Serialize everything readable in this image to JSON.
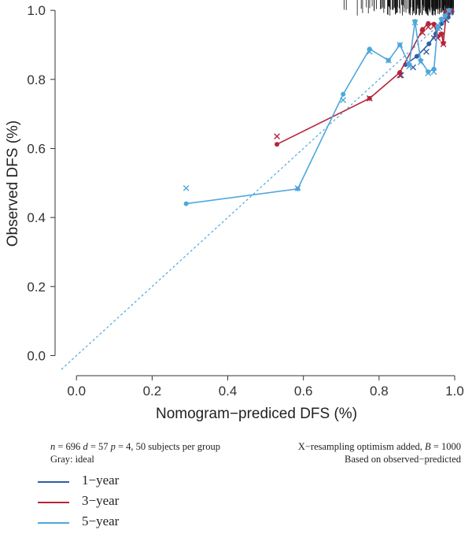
{
  "chart_data": {
    "type": "line",
    "xlabel": "Nomogram−prediced DFS (%)",
    "ylabel": "Observed DFS (%)",
    "xlim": [
      -0.04,
      1.0
    ],
    "ylim": [
      -0.04,
      1.03
    ],
    "xticks": [
      "0.0",
      "0.2",
      "0.4",
      "0.6",
      "0.8",
      "1.0"
    ],
    "yticks": [
      "0.0",
      "0.2",
      "0.4",
      "0.6",
      "0.8",
      "1.0"
    ],
    "grid": false,
    "ideal_line": true,
    "series": [
      {
        "name": "1−year",
        "color": "#2e5fa3",
        "observed": [
          [
            0.87,
            0.843
          ],
          [
            0.9,
            0.867
          ],
          [
            0.932,
            0.903
          ],
          [
            0.95,
            0.932
          ],
          [
            0.966,
            0.962
          ],
          [
            0.983,
            0.98
          ],
          [
            0.993,
            0.997
          ]
        ],
        "bias_corrected": [
          [
            0.858,
            0.812
          ],
          [
            0.89,
            0.835
          ],
          [
            0.925,
            0.88
          ],
          [
            0.945,
            0.92
          ],
          [
            0.96,
            0.952
          ],
          [
            0.978,
            0.972
          ],
          [
            0.99,
            0.995
          ]
        ]
      },
      {
        "name": "3−year",
        "color": "#b5253a",
        "observed": [
          [
            0.53,
            0.612
          ],
          [
            0.775,
            0.745
          ],
          [
            0.855,
            0.82
          ],
          [
            0.915,
            0.945
          ],
          [
            0.93,
            0.962
          ],
          [
            0.945,
            0.96
          ],
          [
            0.955,
            0.925
          ],
          [
            0.965,
            0.932
          ],
          [
            0.97,
            0.905
          ],
          [
            0.978,
            0.995
          ],
          [
            0.99,
            1.0
          ]
        ],
        "bias_corrected": [
          [
            0.53,
            0.635
          ],
          [
            0.775,
            0.745
          ],
          [
            0.855,
            0.812
          ],
          [
            0.915,
            0.935
          ],
          [
            0.93,
            0.952
          ],
          [
            0.945,
            0.955
          ],
          [
            0.955,
            0.92
          ],
          [
            0.965,
            0.928
          ],
          [
            0.97,
            0.902
          ],
          [
            0.978,
            0.99
          ],
          [
            0.99,
            0.998
          ]
        ]
      },
      {
        "name": "5−year",
        "color": "#4ea7dc",
        "observed": [
          [
            0.29,
            0.44
          ],
          [
            0.585,
            0.483
          ],
          [
            0.705,
            0.757
          ],
          [
            0.775,
            0.888
          ],
          [
            0.825,
            0.855
          ],
          [
            0.855,
            0.9
          ],
          [
            0.88,
            0.843
          ],
          [
            0.895,
            0.968
          ],
          [
            0.91,
            0.855
          ],
          [
            0.93,
            0.822
          ],
          [
            0.945,
            0.83
          ],
          [
            0.955,
            0.952
          ],
          [
            0.965,
            0.975
          ],
          [
            0.975,
            0.985
          ],
          [
            0.985,
            1.0
          ]
        ],
        "bias_corrected": [
          [
            0.29,
            0.485
          ],
          [
            0.585,
            0.485
          ],
          [
            0.705,
            0.74
          ],
          [
            0.775,
            0.88
          ],
          [
            0.825,
            0.855
          ],
          [
            0.855,
            0.9
          ],
          [
            0.88,
            0.838
          ],
          [
            0.895,
            0.965
          ],
          [
            0.91,
            0.85
          ],
          [
            0.93,
            0.818
          ],
          [
            0.945,
            0.822
          ],
          [
            0.955,
            0.948
          ],
          [
            0.965,
            0.97
          ],
          [
            0.975,
            0.98
          ],
          [
            0.985,
            0.998
          ]
        ]
      }
    ]
  },
  "notes": {
    "n_label": "n",
    "n_value": " = 696 ",
    "d_label": "d",
    "d_value": " = 57 ",
    "p_label": "p",
    "p_value": " = 4, 50 subjects per group",
    "gray_ideal": "Gray: ideal",
    "resampling": "X−resampling optimism added, ",
    "b_label": "B",
    "b_value": " = 1000",
    "based_on": "Based on observed−predicted"
  },
  "colors": {
    "ideal": "#5aaede",
    "rug": "#111111"
  }
}
